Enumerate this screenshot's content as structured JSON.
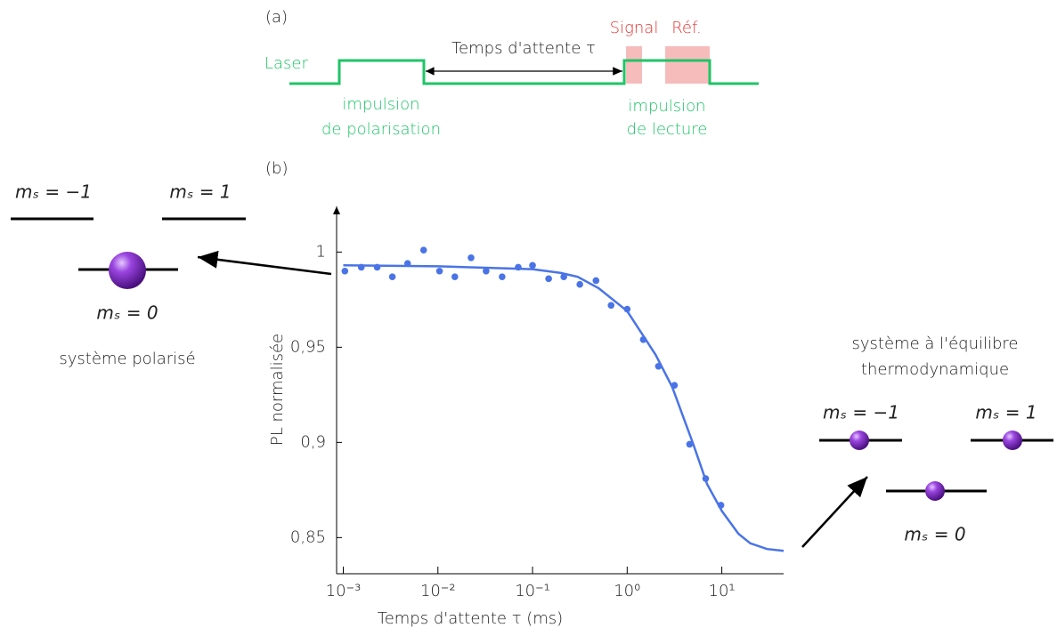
{
  "panel_a": {
    "label": "(a)",
    "laser": "Laser",
    "wait": "Temps d'attente τ",
    "signal": "Signal",
    "ref": "Réf.",
    "pulse1": [
      "impulsion",
      "de polarisation"
    ],
    "pulse2": [
      "impulsion",
      "de lecture"
    ]
  },
  "panel_b": {
    "label": "(b)"
  },
  "left_states": {
    "m_minus": "mₛ = −1",
    "m_plus": "mₛ = 1",
    "m_zero": "mₛ = 0",
    "caption": "système polarisé"
  },
  "right_states": {
    "caption": [
      "système à l'équilibre",
      "thermodynamique"
    ],
    "m_minus": "mₛ = −1",
    "m_plus": "mₛ = 1",
    "m_zero": "mₛ = 0"
  },
  "chart_data": {
    "type": "scatter",
    "x_label": "Temps d'attente τ (ms)",
    "y_label": "PL normalisée",
    "xscale": "log",
    "xlim": [
      0.00085,
      45
    ],
    "ylim": [
      0.831,
      1.024
    ],
    "xticks": [
      {
        "value": 0.001,
        "label": "10⁻³"
      },
      {
        "value": 0.01,
        "label": "10⁻²"
      },
      {
        "value": 0.1,
        "label": "10⁻¹"
      },
      {
        "value": 1,
        "label": "10⁰"
      },
      {
        "value": 10,
        "label": "10¹"
      }
    ],
    "yticks": [
      {
        "value": 0.85,
        "label": "0,85"
      },
      {
        "value": 0.9,
        "label": "0,9"
      },
      {
        "value": 0.95,
        "label": "0,95"
      },
      1
    ],
    "series": [
      {
        "kind": "points",
        "color": "#4a74e6",
        "x": [
          0.00104,
          0.00155,
          0.00228,
          0.0033,
          0.00478,
          0.00706,
          0.0104,
          0.0151,
          0.0224,
          0.0323,
          0.0477,
          0.0706,
          0.1,
          0.148,
          0.214,
          0.316,
          0.468,
          0.676,
          1.0,
          1.48,
          2.14,
          3.16,
          4.57,
          6.76,
          9.79
        ],
        "values": [
          0.99,
          0.992,
          0.992,
          0.987,
          0.994,
          1.001,
          0.99,
          0.987,
          0.997,
          0.99,
          0.987,
          0.992,
          0.993,
          0.986,
          0.987,
          0.983,
          0.985,
          0.972,
          0.97,
          0.954,
          0.94,
          0.93,
          0.899,
          0.881,
          0.867
        ]
      },
      {
        "kind": "fit",
        "color": "#4a74e6",
        "x": [
          0.001,
          0.01,
          0.1,
          0.2,
          0.3,
          0.5,
          1,
          2,
          3,
          5,
          7,
          10,
          15,
          20,
          30,
          45
        ],
        "values": [
          0.993,
          0.9925,
          0.991,
          0.989,
          0.987,
          0.981,
          0.969,
          0.946,
          0.929,
          0.899,
          0.878,
          0.864,
          0.852,
          0.847,
          0.844,
          0.843
        ]
      }
    ]
  }
}
